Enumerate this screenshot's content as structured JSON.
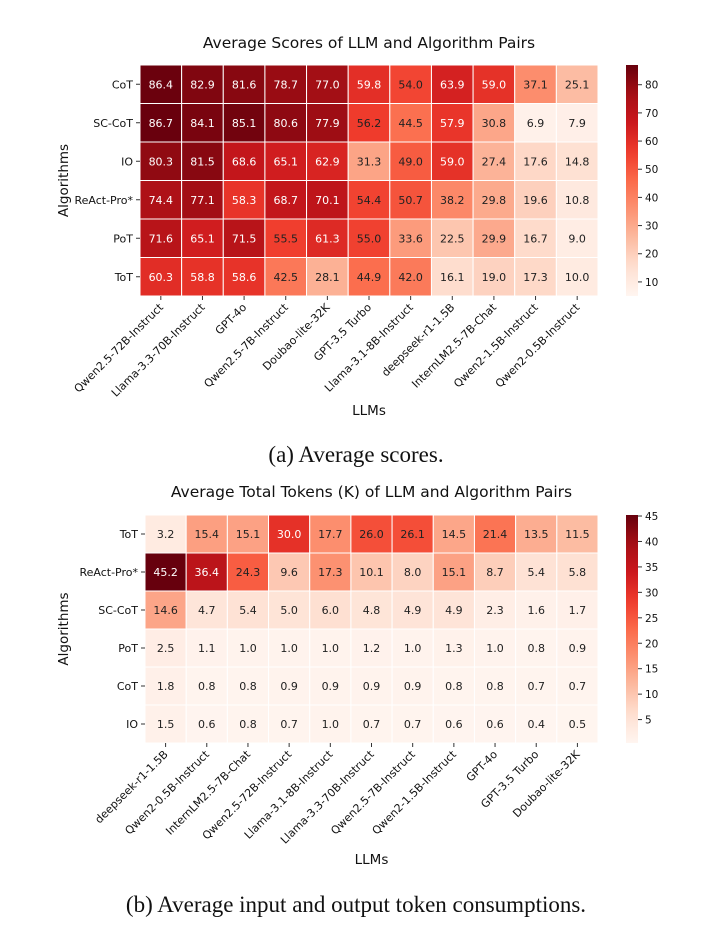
{
  "figure_a": {
    "caption": "(a) Average scores.",
    "chart_data": {
      "type": "heatmap",
      "title": "Average Scores of LLM and Algorithm Pairs",
      "xlabel": "LLMs",
      "ylabel": "Algorithms",
      "x": [
        "Qwen2.5-72B-Instruct",
        "Llama-3.3-70B-Instruct",
        "GPT-4o",
        "Qwen2.5-7B-Instruct",
        "Doubao-lite-32K",
        "GPT-3.5 Turbo",
        "Llama-3.1-8B-Instruct",
        "deepseek-r1-1.5B",
        "InternLM2.5-7B-Chat",
        "Qwen2-1.5B-Instruct",
        "Qwen2-0.5B-Instruct"
      ],
      "y": [
        "CoT",
        "SC-CoT",
        "IO",
        "ReAct-Pro*",
        "PoT",
        "ToT"
      ],
      "values": [
        [
          86.4,
          82.9,
          81.6,
          78.7,
          77.0,
          59.8,
          54.0,
          63.9,
          59.0,
          37.1,
          25.1
        ],
        [
          86.7,
          84.1,
          85.1,
          80.6,
          77.9,
          56.2,
          44.5,
          57.9,
          30.8,
          6.9,
          7.9
        ],
        [
          80.3,
          81.5,
          68.6,
          65.1,
          62.9,
          31.3,
          49.0,
          59.0,
          27.4,
          17.6,
          14.8
        ],
        [
          74.4,
          77.1,
          58.3,
          68.7,
          70.1,
          54.4,
          50.7,
          38.2,
          29.8,
          19.6,
          10.8
        ],
        [
          71.6,
          65.1,
          71.5,
          55.5,
          61.3,
          55.0,
          33.6,
          22.5,
          29.9,
          16.7,
          9.0
        ],
        [
          60.3,
          58.8,
          58.6,
          42.5,
          28.1,
          44.9,
          42.0,
          16.1,
          19.0,
          17.3,
          10.0
        ]
      ],
      "vmin": 5,
      "vmax": 87,
      "colorbar_ticks": [
        80,
        70,
        60,
        50,
        40,
        30,
        20,
        10
      ],
      "colormap": [
        "#fff5f0",
        "#fee0d2",
        "#fcbba1",
        "#fc9272",
        "#fb6a4a",
        "#ef3b2c",
        "#cb181d",
        "#a50f15",
        "#67000d"
      ]
    }
  },
  "figure_b": {
    "caption": "(b) Average input and output token consumptions.",
    "chart_data": {
      "type": "heatmap",
      "title": "Average Total Tokens (K) of LLM and Algorithm Pairs",
      "xlabel": "LLMs",
      "ylabel": "Algorithms",
      "x": [
        "deepseek-r1-1.5B",
        "Qwen2-0.5B-Instruct",
        "InternLM2.5-7B-Chat",
        "Qwen2.5-72B-Instruct",
        "Llama-3.1-8B-Instruct",
        "Llama-3.3-70B-Instruct",
        "Qwen2.5-7B-Instruct",
        "Qwen2-1.5B-Instruct",
        "GPT-4o",
        "GPT-3.5 Turbo",
        "Doubao-lite-32K"
      ],
      "y": [
        "ToT",
        "ReAct-Pro*",
        "SC-CoT",
        "PoT",
        "CoT",
        "IO"
      ],
      "values": [
        [
          3.2,
          15.4,
          15.1,
          30.0,
          17.7,
          26.0,
          26.1,
          14.5,
          21.4,
          13.5,
          11.5
        ],
        [
          45.2,
          36.4,
          24.3,
          9.6,
          17.3,
          10.1,
          8.0,
          15.1,
          8.7,
          5.4,
          5.8
        ],
        [
          14.6,
          4.7,
          5.4,
          5.0,
          6.0,
          4.8,
          4.9,
          4.9,
          2.3,
          1.6,
          1.7
        ],
        [
          2.5,
          1.1,
          1.0,
          1.0,
          1.0,
          1.2,
          1.0,
          1.3,
          1.0,
          0.8,
          0.9
        ],
        [
          1.8,
          0.8,
          0.8,
          0.9,
          0.9,
          0.9,
          0.9,
          0.8,
          0.8,
          0.7,
          0.7
        ],
        [
          1.5,
          0.6,
          0.8,
          0.7,
          1.0,
          0.7,
          0.7,
          0.6,
          0.6,
          0.4,
          0.5
        ]
      ],
      "vmin": 0.4,
      "vmax": 45.2,
      "colorbar_ticks": [
        45,
        40,
        35,
        30,
        25,
        20,
        15,
        10,
        5
      ],
      "colormap": [
        "#fff5f0",
        "#fee0d2",
        "#fcbba1",
        "#fc9272",
        "#fb6a4a",
        "#ef3b2c",
        "#cb181d",
        "#a50f15",
        "#67000d"
      ]
    }
  }
}
